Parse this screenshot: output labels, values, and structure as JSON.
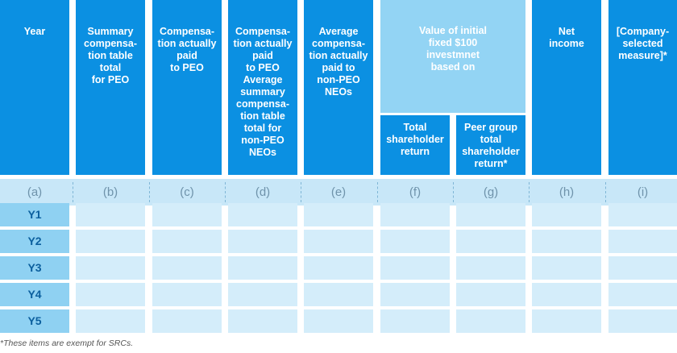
{
  "table": {
    "columns": [
      {
        "header": [
          "Year"
        ],
        "letter": "(a)"
      },
      {
        "header": [
          "Summary",
          "compensa-",
          "tion table",
          "total",
          "for PEO"
        ],
        "letter": "(b)"
      },
      {
        "header": [
          "Compensa-",
          "tion actually",
          "paid",
          "to PEO"
        ],
        "letter": "(c)"
      },
      {
        "header": [
          "Compensa-",
          "tion actually",
          "paid",
          "to PEO",
          "Average",
          "summary",
          "compensa-",
          "tion table",
          "total for",
          "non-PEO",
          "NEOs"
        ],
        "letter": "(d)"
      },
      {
        "header": [
          "Average",
          "compensa-",
          "tion actually",
          "paid to",
          "non-PEO",
          "NEOs"
        ],
        "letter": "(e)"
      },
      {
        "header": [
          "Total",
          "shareholder",
          "return"
        ],
        "letter": "(f)"
      },
      {
        "header": [
          "Peer group",
          "total",
          "shareholder",
          "return*"
        ],
        "letter": "(g)"
      },
      {
        "header": [
          "Net",
          "income"
        ],
        "letter": "(h)"
      },
      {
        "header": [
          "[Company-",
          "selected",
          "measure]*"
        ],
        "letter": "(i)"
      }
    ],
    "group": {
      "header": [
        "Value of initial",
        "fixed $100",
        "investmnet",
        "based on"
      ]
    },
    "rows": [
      "Y1",
      "Y2",
      "Y3",
      "Y4",
      "Y5"
    ],
    "footnote": "*These items are exempt for SRCs."
  }
}
